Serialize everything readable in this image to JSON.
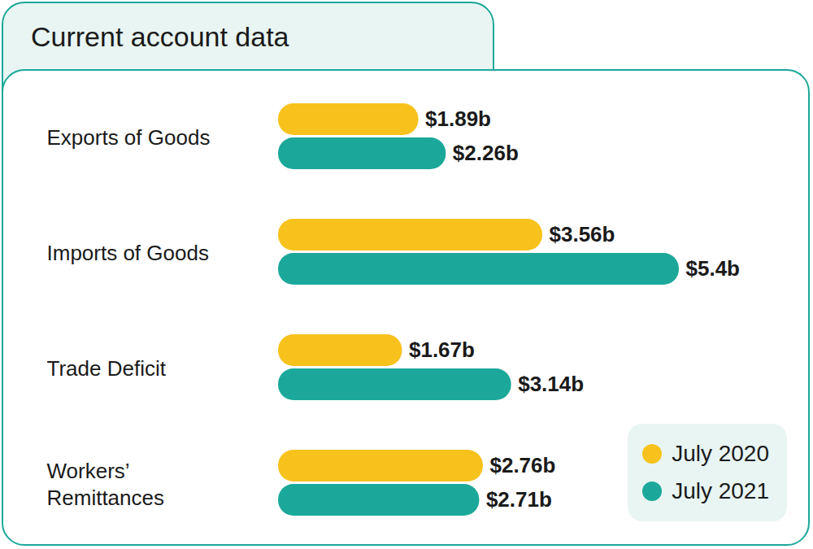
{
  "chart_data": {
    "type": "bar",
    "title": "Current account data",
    "orientation": "horizontal",
    "categories": [
      "Exports of Goods",
      "Imports of Goods",
      "Trade Deficit",
      "Workers’ Remittances"
    ],
    "series": [
      {
        "name": "July 2020",
        "color": "#f8c21c",
        "values": [
          1.89,
          3.56,
          1.67,
          2.76
        ],
        "value_labels": [
          "$1.89b",
          "$3.56b",
          "$1.67b",
          "$2.76b"
        ]
      },
      {
        "name": "July 2021",
        "color": "#1ba89a",
        "values": [
          2.26,
          5.4,
          3.14,
          2.71
        ],
        "value_labels": [
          "$2.26b",
          "$5.4b",
          "$3.14b",
          "$2.71b"
        ]
      }
    ],
    "xlim": [
      0,
      5.4
    ],
    "data_labels": true,
    "tick_labels": false,
    "legend": "bottom-right"
  }
}
